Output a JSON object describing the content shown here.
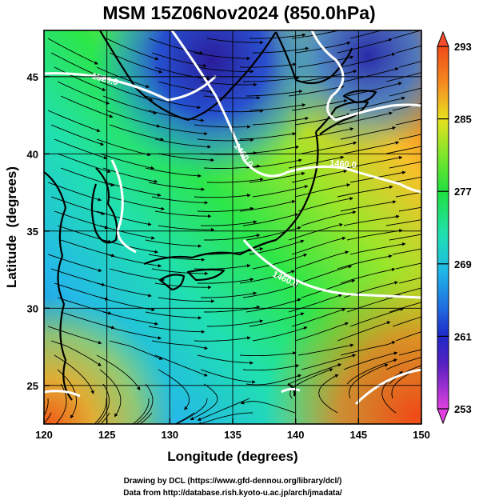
{
  "title": "MSM 15Z06Nov2024 (850.0hPa)",
  "xlabel": "Longitude (degrees)",
  "ylabel": "Latitude  (degrees)",
  "x_ticks": [
    "120",
    "125",
    "130",
    "135",
    "140",
    "145",
    "150"
  ],
  "y_ticks": [
    "25",
    "30",
    "35",
    "40",
    "45"
  ],
  "colorbar_ticks": [
    "293",
    "285",
    "277",
    "269",
    "261",
    "253"
  ],
  "contour_labels": [
    "1520.0",
    "1460.0",
    "1460.0",
    "1460.0"
  ],
  "credits": {
    "line1": "Drawing by DCL (https://www.gfd-dennou.org/library/dcl/)",
    "line2": "Data from http://database.rish.kyoto-u.ac.jp/arch/jmadata/"
  },
  "chart_data": {
    "type": "heatmap",
    "variable": "temperature at 850 hPa with wind streamlines and height contours",
    "xlim": [
      120,
      150
    ],
    "ylim": [
      22.5,
      48
    ],
    "colorbar_range": [
      253,
      293
    ],
    "colorbar_ticks": [
      293,
      285,
      277,
      269,
      261,
      253
    ],
    "x_ticks": [
      120,
      125,
      130,
      135,
      140,
      145,
      150
    ],
    "y_ticks": [
      25,
      30,
      35,
      40,
      45
    ],
    "contour_labels": [
      "1520.0",
      "1460.0",
      "1460.0",
      "1460.0"
    ],
    "grid": true,
    "colors": {
      "cold": "#2a1a9e",
      "cool": "#1f6ee0",
      "mid": "#1fe0d0",
      "mild": "#38e050",
      "warm": "#e8e01f",
      "hot": "#f06a18",
      "max": "#f44c2c",
      "min": "#e040e0"
    }
  }
}
